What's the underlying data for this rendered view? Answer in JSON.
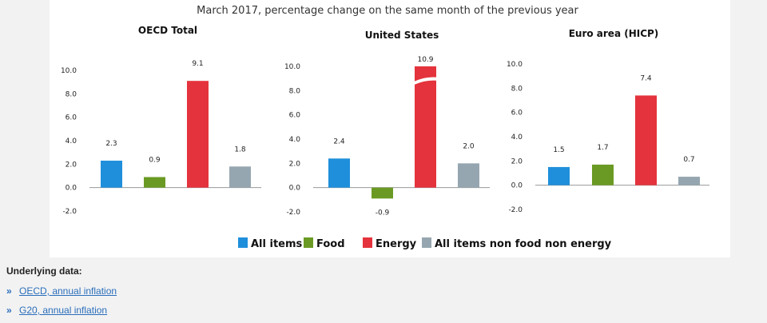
{
  "subtitle": "March 2017, percentage change on the same month of the previous year",
  "legend": [
    {
      "label": "All items",
      "color": "#1f8fdb"
    },
    {
      "label": "Food",
      "color": "#6a9a23"
    },
    {
      "label": "Energy",
      "color": "#e4333c"
    },
    {
      "label": "All items non food non energy",
      "color": "#96a6b0"
    }
  ],
  "chart_data": [
    {
      "type": "bar",
      "title": "OECD Total",
      "categories": [
        "All items",
        "Food",
        "Energy",
        "All items non food non energy"
      ],
      "values": [
        2.3,
        0.9,
        9.1,
        1.8
      ],
      "value_labels": [
        "2.3",
        "0.9",
        "9.1",
        "1.8"
      ],
      "ylim": [
        -2.0,
        10.0
      ],
      "yticks": [
        "10.0",
        "8.0",
        "6.0",
        "4.0",
        "2.0",
        "0.0",
        "-2.0"
      ],
      "ytick_values": [
        10,
        8,
        6,
        4,
        2,
        0,
        -2
      ],
      "axis_break": false
    },
    {
      "type": "bar",
      "title": "United States",
      "categories": [
        "All items",
        "Food",
        "Energy",
        "All items non food non energy"
      ],
      "values": [
        2.4,
        -0.9,
        10.9,
        2.0
      ],
      "value_labels": [
        "2.4",
        "-0.9",
        "10.9",
        "2.0"
      ],
      "ylim": [
        -2.0,
        10.0
      ],
      "yticks": [
        "10.0",
        "8.0",
        "6.0",
        "4.0",
        "2.0",
        "0.0",
        "-2.0"
      ],
      "ytick_values": [
        10,
        8,
        6,
        4,
        2,
        0,
        -2
      ],
      "axis_break": true
    },
    {
      "type": "bar",
      "title": "Euro area (HICP)",
      "categories": [
        "All items",
        "Food",
        "Energy",
        "All items non food non energy"
      ],
      "values": [
        1.5,
        1.7,
        7.4,
        0.7
      ],
      "value_labels": [
        "1.5",
        "1.7",
        "7.4",
        "0.7"
      ],
      "ylim": [
        -2.0,
        10.0
      ],
      "yticks": [
        "10.0",
        "8.0",
        "6.0",
        "4.0",
        "2.0",
        "0.0",
        "-2.0"
      ],
      "ytick_values": [
        10,
        8,
        6,
        4,
        2,
        0,
        -2
      ],
      "axis_break": false
    }
  ],
  "underlying": {
    "title": "Underlying data:",
    "links": [
      {
        "arrow": "»",
        "label": "OECD, annual inflation"
      },
      {
        "arrow": "»",
        "label": "G20, annual inflation"
      }
    ]
  }
}
